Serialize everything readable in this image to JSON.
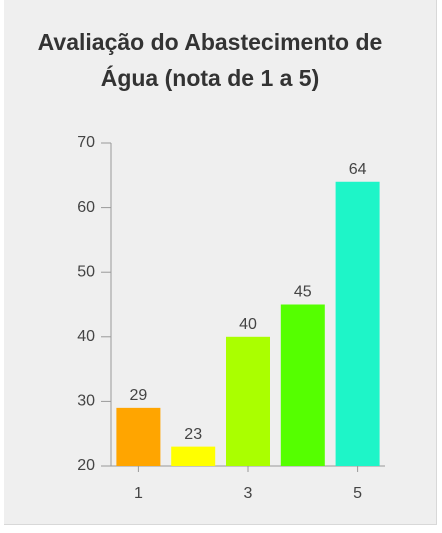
{
  "chart_data": {
    "type": "bar",
    "title": "Avaliação do Abastecimento de Água (nota de 1 a 5)",
    "categories": [
      "1",
      null,
      "3",
      null,
      "5"
    ],
    "values": [
      29,
      23,
      40,
      45,
      64
    ],
    "colors": [
      "#ffa500",
      "#ffff00",
      "#aaff00",
      "#55ff00",
      "#1ef5c8"
    ],
    "ylim": [
      20,
      70
    ],
    "yticks": [
      20,
      30,
      40,
      50,
      60,
      70
    ],
    "grid": false
  }
}
